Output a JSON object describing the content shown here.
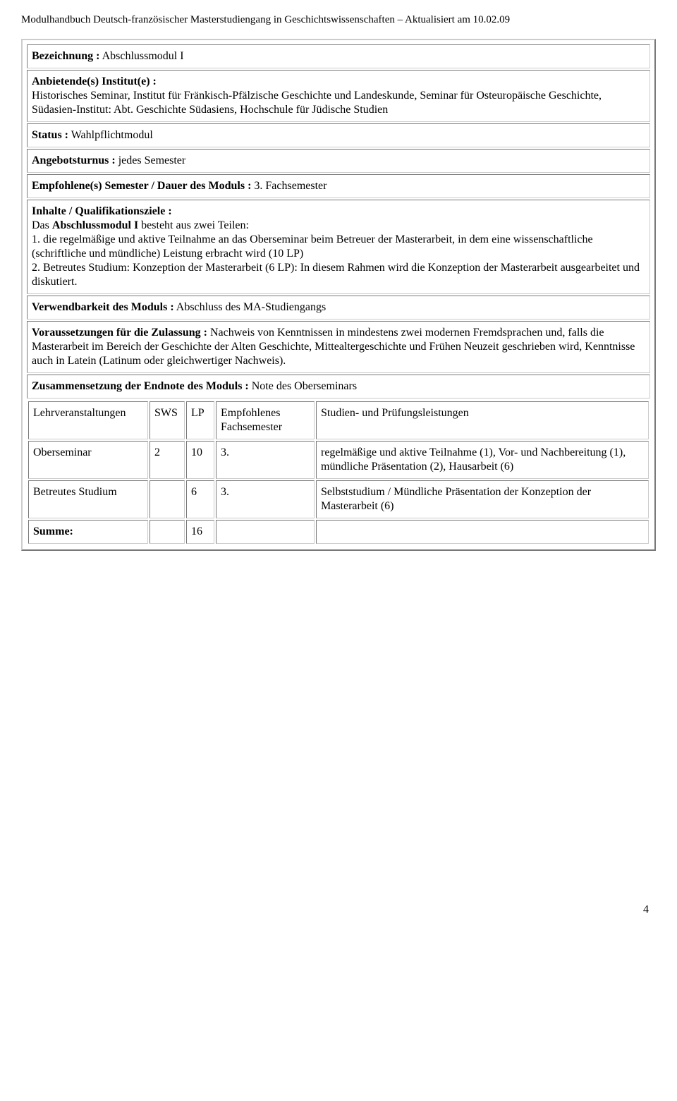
{
  "header": "Modulhandbuch Deutsch-französischer Masterstudiengang in Geschichtswissenschaften – Aktualisiert am 10.02.09",
  "module": {
    "bezeichnung_label": "Bezeichnung :",
    "bezeichnung_value": "Abschlussmodul I",
    "anbietende_label": "Anbietende(s) Institut(e)  :",
    "anbietende_value": "Historisches Seminar, Institut für Fränkisch-Pfälzische Geschichte und Landeskunde, Seminar für Osteuropäische Geschichte, Südasien-Institut: Abt. Geschichte Südasiens, Hochschule für Jüdische Studien",
    "status_label": "Status :",
    "status_value": "Wahlpflichtmodul",
    "turnus_label": "Angebotsturnus :",
    "turnus_value": "jedes Semester",
    "empf_label": "Empfohlene(s) Semester / Dauer des Moduls :",
    "empf_value": "3. Fachsemester",
    "inhalte_label": "Inhalte / Qualifikationsziele :",
    "inhalte_intro_pre": "Das ",
    "inhalte_intro_bold": "Abschlussmodul I",
    "inhalte_intro_post": " besteht aus zwei Teilen:",
    "inhalte_p1": "1. die regelmäßige und aktive Teilnahme an das Oberseminar beim Betreuer der Masterarbeit, in dem eine wissenschaftliche (schriftliche und mündliche) Leistung erbracht wird (10 LP)",
    "inhalte_p2": "2. Betreutes Studium: Konzeption der Masterarbeit (6 LP): In diesem Rahmen wird die Konzeption der Masterarbeit ausgearbeitet und diskutiert.",
    "verwendbarkeit_label": "Verwendbarkeit des Moduls :",
    "verwendbarkeit_value": "Abschluss des MA-Studiengangs",
    "voraussetzungen_label": "Voraussetzungen für die Zulassung :",
    "voraussetzungen_value": "Nachweis von Kenntnissen in mindestens zwei modernen Fremdsprachen und, falls die Masterarbeit im Bereich der Geschichte der Alten Geschichte, Mittealtergeschichte und Frühen Neuzeit geschrieben wird, Kenntnisse auch in Latein (Latinum oder gleichwertiger Nachweis).",
    "endnote_label": "Zusammensetzung der Endnote des Moduls :",
    "endnote_value": "Note des Oberseminars"
  },
  "table": {
    "headers": {
      "lehr": "Lehrveranstaltungen",
      "sws": "SWS",
      "lp": "LP",
      "fach": "Empfohlenes Fachsemester",
      "leist": "Studien- und Prüfungsleistungen"
    },
    "rows": [
      {
        "course": "Oberseminar",
        "sws": "2",
        "lp": "10",
        "fach": "3.",
        "leist": "regelmäßige und aktive Teilnahme (1), Vor- und Nachbereitung (1), mündliche Präsentation (2), Hausarbeit (6)"
      },
      {
        "course": "Betreutes Studium",
        "sws": "",
        "lp": "6",
        "fach": "3.",
        "leist": "Selbststudium / Mündliche Präsentation der Konzeption der Masterarbeit (6)"
      }
    ],
    "sum_label": "Summe:",
    "sum_lp": "16"
  },
  "page_number": "4"
}
